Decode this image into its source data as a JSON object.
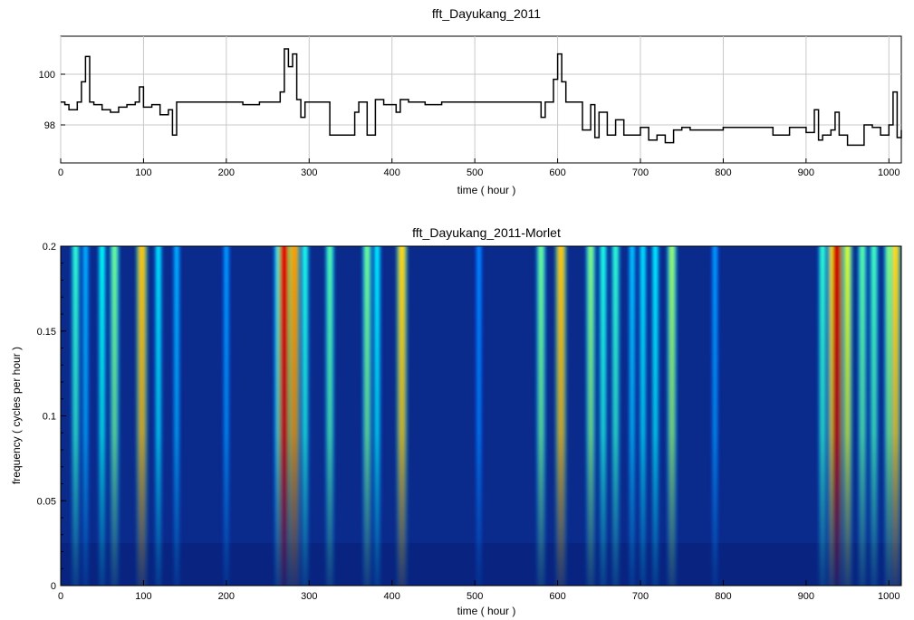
{
  "chart_data": [
    {
      "type": "line",
      "title": "fft_Dayukang_2011",
      "xlabel": "time ( hour )",
      "ylabel": "",
      "xlim": [
        0,
        1015
      ],
      "ylim": [
        96.5,
        101.5
      ],
      "x_ticks": [
        0,
        100,
        200,
        300,
        400,
        500,
        600,
        700,
        800,
        900,
        1000
      ],
      "y_ticks": [
        98,
        100
      ],
      "grid": true,
      "series": [
        {
          "x": [
            0,
            5,
            10,
            20,
            25,
            30,
            35,
            40,
            50,
            60,
            70,
            80,
            90,
            95,
            100,
            110,
            120,
            130,
            135,
            140,
            160,
            180,
            200,
            220,
            240,
            260,
            265,
            270,
            275,
            280,
            285,
            290,
            295,
            300,
            310,
            320,
            325,
            330,
            350,
            355,
            360,
            370,
            380,
            390,
            400,
            405,
            410,
            420,
            440,
            460,
            480,
            500,
            520,
            540,
            560,
            575,
            580,
            585,
            590,
            595,
            600,
            605,
            610,
            620,
            630,
            640,
            645,
            650,
            660,
            670,
            680,
            690,
            700,
            710,
            720,
            730,
            740,
            750,
            760,
            780,
            800,
            820,
            840,
            860,
            880,
            900,
            910,
            915,
            920,
            930,
            935,
            940,
            950,
            960,
            970,
            980,
            990,
            1000,
            1005,
            1010,
            1015
          ],
          "y": [
            98.9,
            98.8,
            98.6,
            98.9,
            99.7,
            100.7,
            98.9,
            98.8,
            98.6,
            98.5,
            98.7,
            98.8,
            98.9,
            99.5,
            98.7,
            98.8,
            98.4,
            98.6,
            97.6,
            98.9,
            98.9,
            98.9,
            98.9,
            98.8,
            98.9,
            98.9,
            99.3,
            101.0,
            100.3,
            100.8,
            99.0,
            98.3,
            98.9,
            98.9,
            98.9,
            98.9,
            97.6,
            97.6,
            97.6,
            98.5,
            98.9,
            97.6,
            99.0,
            98.8,
            98.8,
            98.5,
            99.0,
            98.9,
            98.8,
            98.9,
            98.9,
            98.9,
            98.9,
            98.9,
            98.9,
            98.9,
            98.3,
            98.9,
            98.9,
            99.8,
            100.8,
            99.7,
            98.9,
            98.9,
            97.8,
            98.8,
            97.5,
            98.5,
            97.6,
            98.2,
            97.6,
            97.6,
            97.9,
            97.4,
            97.6,
            97.3,
            97.8,
            97.9,
            97.8,
            97.8,
            97.9,
            97.9,
            97.9,
            97.6,
            97.9,
            97.7,
            98.6,
            97.4,
            97.6,
            97.8,
            98.5,
            97.6,
            97.2,
            97.2,
            98.0,
            97.9,
            97.6,
            98.0,
            99.3,
            97.5,
            97.8
          ]
        }
      ]
    },
    {
      "type": "heatmap",
      "title": "fft_Dayukang_2011-Morlet",
      "xlabel": "time ( hour )",
      "ylabel": "frequency ( cycles per hour )",
      "xlim": [
        0,
        1015
      ],
      "ylim": [
        0,
        0.2
      ],
      "x_ticks": [
        0,
        100,
        200,
        300,
        400,
        500,
        600,
        700,
        800,
        900,
        1000
      ],
      "y_ticks": [
        0,
        0.05,
        0.1,
        0.15,
        0.2
      ],
      "colormap": [
        "#00007f",
        "#0000ff",
        "#0080ff",
        "#00ffff",
        "#80ff80",
        "#ffff00",
        "#ff8000",
        "#ff0000",
        "#7f0000"
      ],
      "background_color": "#0a2a8c",
      "bands": [
        {
          "x": 18,
          "intensity": 0.42
        },
        {
          "x": 30,
          "intensity": 0.3
        },
        {
          "x": 50,
          "intensity": 0.38
        },
        {
          "x": 65,
          "intensity": 0.48
        },
        {
          "x": 98,
          "intensity": 0.68
        },
        {
          "x": 118,
          "intensity": 0.35
        },
        {
          "x": 140,
          "intensity": 0.3
        },
        {
          "x": 200,
          "intensity": 0.28
        },
        {
          "x": 262,
          "intensity": 0.35
        },
        {
          "x": 270,
          "intensity": 0.9
        },
        {
          "x": 282,
          "intensity": 0.72
        },
        {
          "x": 295,
          "intensity": 0.4
        },
        {
          "x": 325,
          "intensity": 0.45
        },
        {
          "x": 370,
          "intensity": 0.48
        },
        {
          "x": 382,
          "intensity": 0.36
        },
        {
          "x": 412,
          "intensity": 0.66
        },
        {
          "x": 505,
          "intensity": 0.26
        },
        {
          "x": 580,
          "intensity": 0.48
        },
        {
          "x": 604,
          "intensity": 0.68
        },
        {
          "x": 640,
          "intensity": 0.5
        },
        {
          "x": 655,
          "intensity": 0.4
        },
        {
          "x": 670,
          "intensity": 0.42
        },
        {
          "x": 690,
          "intensity": 0.32
        },
        {
          "x": 703,
          "intensity": 0.35
        },
        {
          "x": 718,
          "intensity": 0.36
        },
        {
          "x": 738,
          "intensity": 0.52
        },
        {
          "x": 790,
          "intensity": 0.28
        },
        {
          "x": 920,
          "intensity": 0.42
        },
        {
          "x": 932,
          "intensity": 0.6
        },
        {
          "x": 937,
          "intensity": 0.92
        },
        {
          "x": 950,
          "intensity": 0.58
        },
        {
          "x": 968,
          "intensity": 0.46
        },
        {
          "x": 982,
          "intensity": 0.44
        },
        {
          "x": 1000,
          "intensity": 0.5
        },
        {
          "x": 1008,
          "intensity": 0.66
        }
      ]
    }
  ]
}
